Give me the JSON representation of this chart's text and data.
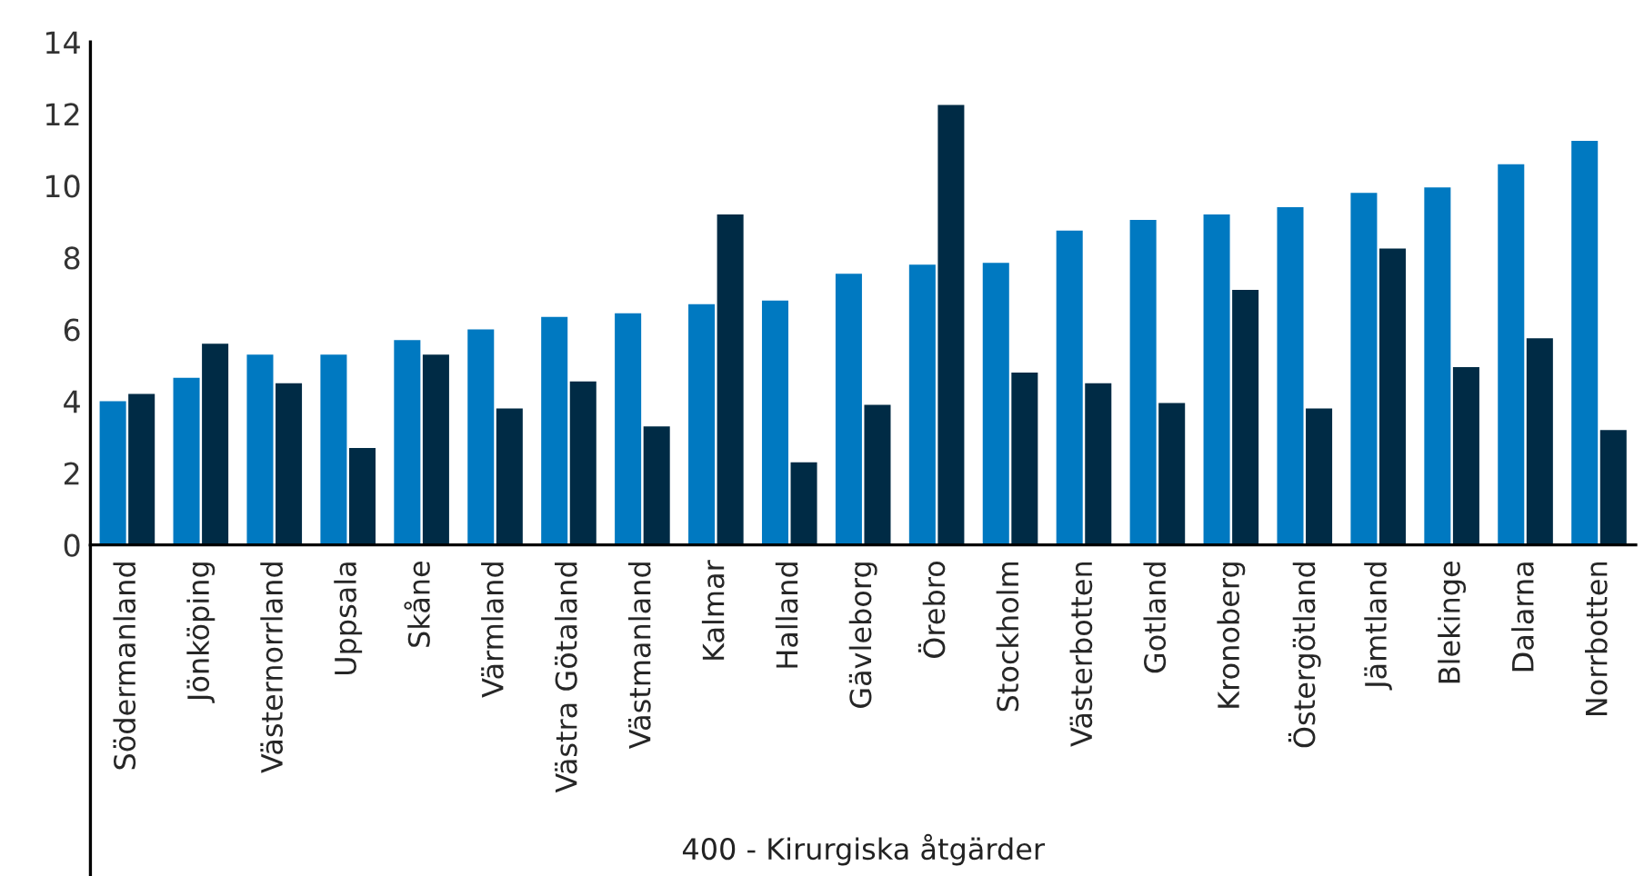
{
  "chart_data": {
    "type": "bar",
    "xlabel": "400 - Kirurgiska åtgärder",
    "categories": [
      "Södermanland",
      "Jönköping",
      "Västernorrland",
      "Uppsala",
      "Skåne",
      "Värmland",
      "Västra Götaland",
      "Västmanland",
      "Kalmar",
      "Halland",
      "Gävleborg",
      "Örebro",
      "Stockholm",
      "Västerbotten",
      "Gotland",
      "Kronoberg",
      "Östergötland",
      "Jämtland",
      "Blekinge",
      "Dalarna",
      "Norrbotten"
    ],
    "series": [
      {
        "color": "#0079c1",
        "values": [
          4.0,
          4.65,
          5.3,
          5.3,
          5.7,
          6.0,
          6.35,
          6.45,
          6.7,
          6.8,
          7.55,
          7.8,
          7.85,
          8.75,
          9.05,
          9.2,
          9.4,
          9.8,
          9.95,
          10.6,
          11.25
        ]
      },
      {
        "color": "#002b45",
        "values": [
          4.2,
          5.6,
          4.5,
          2.7,
          5.3,
          3.8,
          4.55,
          3.3,
          9.2,
          2.3,
          3.9,
          12.25,
          4.8,
          4.5,
          3.95,
          7.1,
          3.8,
          8.25,
          4.95,
          5.75,
          3.2
        ]
      }
    ],
    "ylim": [
      0,
      14
    ],
    "yticks": [
      0,
      2,
      4,
      6,
      8,
      10,
      12,
      14
    ],
    "grid": false,
    "legend": false
  }
}
